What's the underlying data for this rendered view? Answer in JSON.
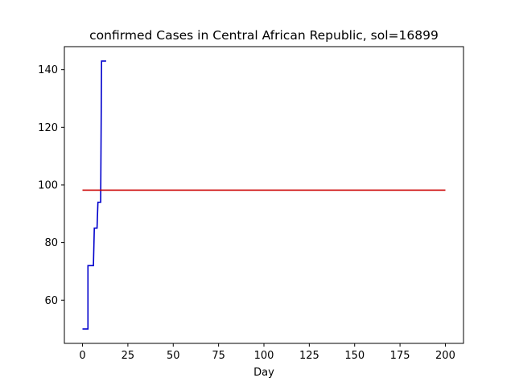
{
  "chart_data": {
    "type": "line",
    "title": "confirmed Cases in Central African Republic, sol=16899",
    "xlabel": "Day",
    "ylabel": "",
    "xlim": [
      -10,
      210
    ],
    "ylim": [
      45,
      148
    ],
    "xticks": [
      0,
      25,
      50,
      75,
      100,
      125,
      150,
      175,
      200
    ],
    "yticks": [
      60,
      80,
      100,
      120,
      140
    ],
    "grid": false,
    "series": [
      {
        "color": "#0000cc",
        "x": [
          0,
          1,
          2,
          3,
          3,
          4,
          5,
          6,
          6.5,
          7,
          8,
          8.5,
          9,
          10,
          10.5,
          11,
          12,
          13
        ],
        "y": [
          50,
          50,
          50,
          50,
          72,
          72,
          72,
          72,
          85,
          85,
          85,
          94,
          94,
          94,
          143,
          143,
          143,
          143
        ]
      },
      {
        "color": "#cc0000",
        "x": [
          0,
          200
        ],
        "y": [
          98.2,
          98.2
        ]
      }
    ]
  }
}
